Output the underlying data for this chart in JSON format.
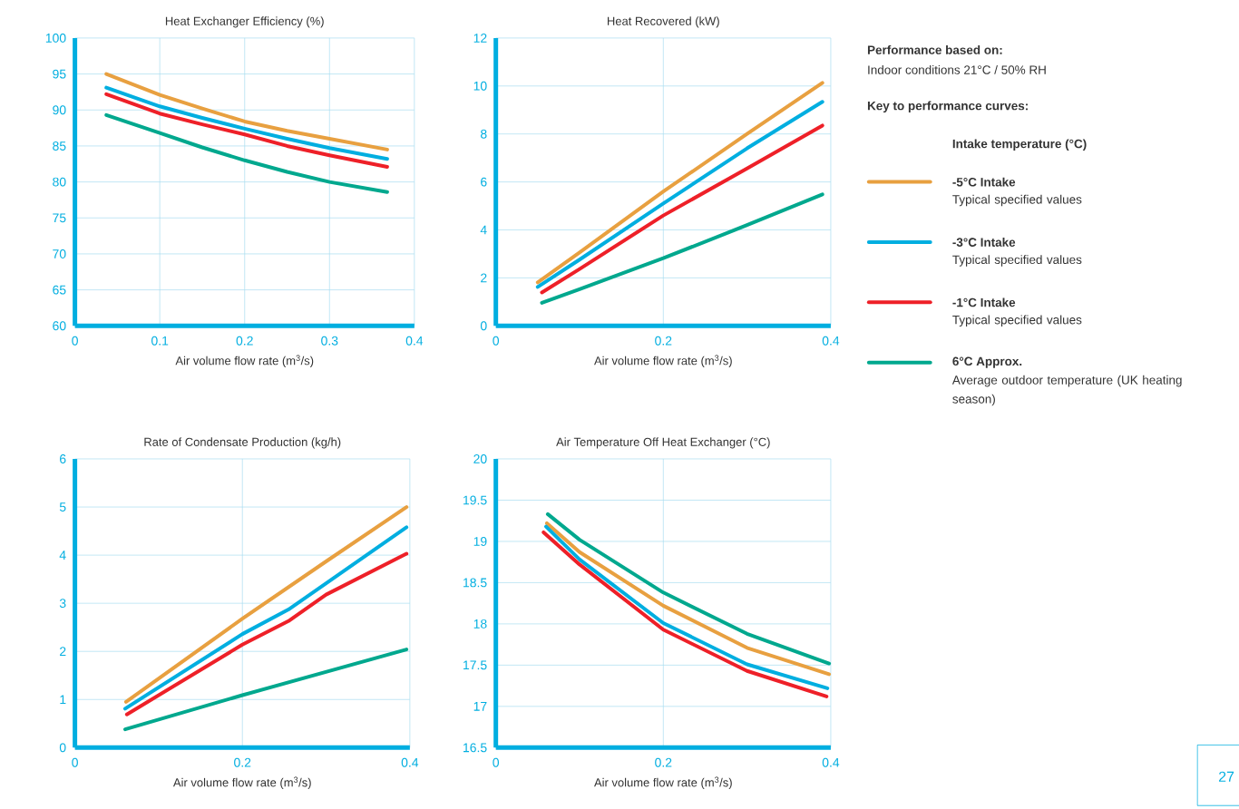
{
  "chart_data": [
    {
      "type": "line",
      "title": "Heat Exchanger Efficiency (%)",
      "xlabel": "Air volume flow rate (m$^{3}$/s)",
      "xlim": [
        0,
        0.4
      ],
      "xticks": [
        0,
        0.1,
        0.2,
        0.3,
        0.4
      ],
      "ylim": [
        60,
        100
      ],
      "yticks": [
        60,
        65,
        70,
        75,
        80,
        85,
        90,
        95,
        100
      ],
      "grid": true,
      "line_style": "solid",
      "legend": "right",
      "legend_title": "Intake temperature (°C)",
      "annotations": [
        "Performance based on:",
        "Indoor conditions 21°C / 50% RH",
        "Key to performance curves:",
        "Typical specified values",
        "Typical specified values",
        "Typical specified values",
        "Average outdoor temperature (UK heating season)",
        "27"
      ],
      "series": [
        {
          "name": "-5°C Intake",
          "color": "#e8a040",
          "x": [
            0.037,
            0.1,
            0.15,
            0.2,
            0.25,
            0.3,
            0.368
          ],
          "values": [
            95,
            92.1,
            90.2,
            88.4,
            87.1,
            86.0,
            84.5
          ]
        },
        {
          "name": "-3°C Intake",
          "color": "#00aee0",
          "x": [
            0.037,
            0.1,
            0.15,
            0.2,
            0.25,
            0.3,
            0.368
          ],
          "values": [
            93.1,
            90.5,
            88.9,
            87.4,
            86.0,
            84.7,
            83.2
          ]
        },
        {
          "name": "-1°C Intake",
          "color": "#ee2028",
          "x": [
            0.037,
            0.1,
            0.15,
            0.2,
            0.25,
            0.3,
            0.368
          ],
          "values": [
            92.2,
            89.5,
            88.0,
            86.6,
            85.0,
            83.7,
            82.1
          ]
        },
        {
          "name": "6°C Approx.",
          "color": "#00a88e",
          "x": [
            0.037,
            0.1,
            0.15,
            0.2,
            0.25,
            0.3,
            0.368
          ],
          "values": [
            89.3,
            86.8,
            84.8,
            83.0,
            81.4,
            80.0,
            78.6
          ]
        }
      ]
    },
    {
      "type": "line",
      "title": "Heat Recovered (kW)",
      "xlabel": "Air volume flow rate (m$^{3}$/s)",
      "xlim": [
        0,
        0.4
      ],
      "xticks": [
        0,
        0.2,
        0.4
      ],
      "ylim": [
        0,
        12
      ],
      "yticks": [
        0,
        2,
        4,
        6,
        8,
        10,
        12
      ],
      "grid": true,
      "line_style": "solid",
      "series": [
        {
          "color": "#e8a040",
          "x": [
            0.05,
            0.1,
            0.2,
            0.3,
            0.39
          ],
          "values": [
            1.81,
            3.06,
            5.6,
            8.0,
            10.13
          ]
        },
        {
          "color": "#00aee0",
          "x": [
            0.05,
            0.1,
            0.2,
            0.3,
            0.39
          ],
          "values": [
            1.62,
            2.76,
            5.1,
            7.4,
            9.34
          ]
        },
        {
          "color": "#ee2028",
          "x": [
            0.055,
            0.1,
            0.2,
            0.3,
            0.39
          ],
          "values": [
            1.39,
            2.37,
            4.6,
            6.56,
            8.35
          ]
        },
        {
          "color": "#00a88e",
          "x": [
            0.055,
            0.1,
            0.2,
            0.3,
            0.39
          ],
          "values": [
            0.96,
            1.53,
            2.82,
            4.2,
            5.48
          ]
        }
      ]
    },
    {
      "type": "line",
      "title": "Rate of Condensate Production (kg/h)",
      "xlabel": "Air volume flow rate (m$^{3}$/s)",
      "xlim": [
        0,
        0.4
      ],
      "xticks": [
        0,
        0.2,
        0.4
      ],
      "ylim": [
        0,
        6
      ],
      "yticks": [
        0,
        1,
        2,
        3,
        4,
        5,
        6
      ],
      "grid": true,
      "line_style": "solid",
      "series": [
        {
          "color": "#e8a040",
          "x": [
            0.061,
            0.2,
            0.3,
            0.396
          ],
          "values": [
            0.95,
            2.68,
            3.87,
            5.0
          ]
        },
        {
          "color": "#00aee0",
          "x": [
            0.06,
            0.2,
            0.255,
            0.396
          ],
          "values": [
            0.81,
            2.36,
            2.87,
            4.58
          ]
        },
        {
          "color": "#ee2028",
          "x": [
            0.062,
            0.2,
            0.255,
            0.3,
            0.396
          ],
          "values": [
            0.69,
            2.14,
            2.63,
            3.18,
            4.03
          ]
        },
        {
          "color": "#00a88e",
          "x": [
            0.06,
            0.2,
            0.396
          ],
          "values": [
            0.38,
            1.09,
            2.04
          ]
        }
      ]
    },
    {
      "type": "line",
      "title": "Air Temperature Off Heat Exchanger (°C)",
      "xlabel": "Air volume flow rate (m$^{3}$/s)",
      "xlim": [
        0,
        0.4
      ],
      "xticks": [
        0,
        0.2,
        0.4
      ],
      "ylim": [
        16.5,
        20
      ],
      "yticks": [
        16.5,
        17,
        17.5,
        18,
        18.5,
        19,
        19.5,
        20
      ],
      "grid": true,
      "line_style": "solid",
      "series": [
        {
          "color": "#e8a040",
          "x": [
            0.061,
            0.1,
            0.2,
            0.3,
            0.398
          ],
          "values": [
            19.22,
            18.87,
            18.22,
            17.71,
            17.39
          ]
        },
        {
          "color": "#00aee0",
          "x": [
            0.06,
            0.1,
            0.2,
            0.3,
            0.396
          ],
          "values": [
            19.18,
            18.78,
            18.01,
            17.51,
            17.22
          ]
        },
        {
          "color": "#ee2028",
          "x": [
            0.057,
            0.1,
            0.2,
            0.3,
            0.395
          ],
          "values": [
            19.11,
            18.72,
            17.93,
            17.43,
            17.12
          ]
        },
        {
          "color": "#00a88e",
          "x": [
            0.062,
            0.1,
            0.2,
            0.3,
            0.398
          ],
          "values": [
            19.33,
            19.02,
            18.38,
            17.88,
            17.52
          ]
        }
      ]
    }
  ]
}
